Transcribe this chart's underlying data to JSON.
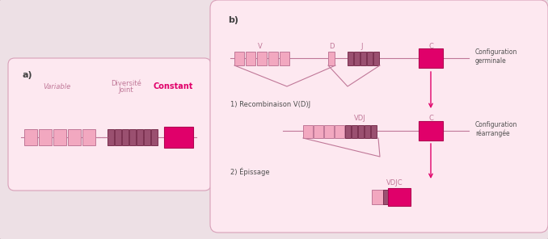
{
  "fig_bg": "#d8cdd0",
  "panel_a_bg": "#fde8f0",
  "panel_b_bg": "#fde8f0",
  "panel_border": "#d8a0b8",
  "light_pink": "#f2a8c0",
  "dark_rose": "#9a5070",
  "magenta": "#e0006a",
  "line_color": "#c07898",
  "arrow_color": "#e0006a",
  "text_dark": "#505050",
  "text_pink": "#c07898",
  "text_magenta": "#e0006a",
  "label_a": "a)",
  "label_b": "b)",
  "var_label": "Variable",
  "div_label": "Diversité",
  "joint_label": "Joint",
  "const_label": "Constant",
  "v_label": "V",
  "d_label": "D",
  "j_label": "J",
  "c_label": "C",
  "vdj_label": "VDJ",
  "vdjc_label": "VDJC",
  "config_germ": "Configuration\ngerminale",
  "recomb_label": "1) Recombinaison V(D)J",
  "config_rearr": "Configuration\nréarrangée",
  "episage_label": "2) Épissage"
}
